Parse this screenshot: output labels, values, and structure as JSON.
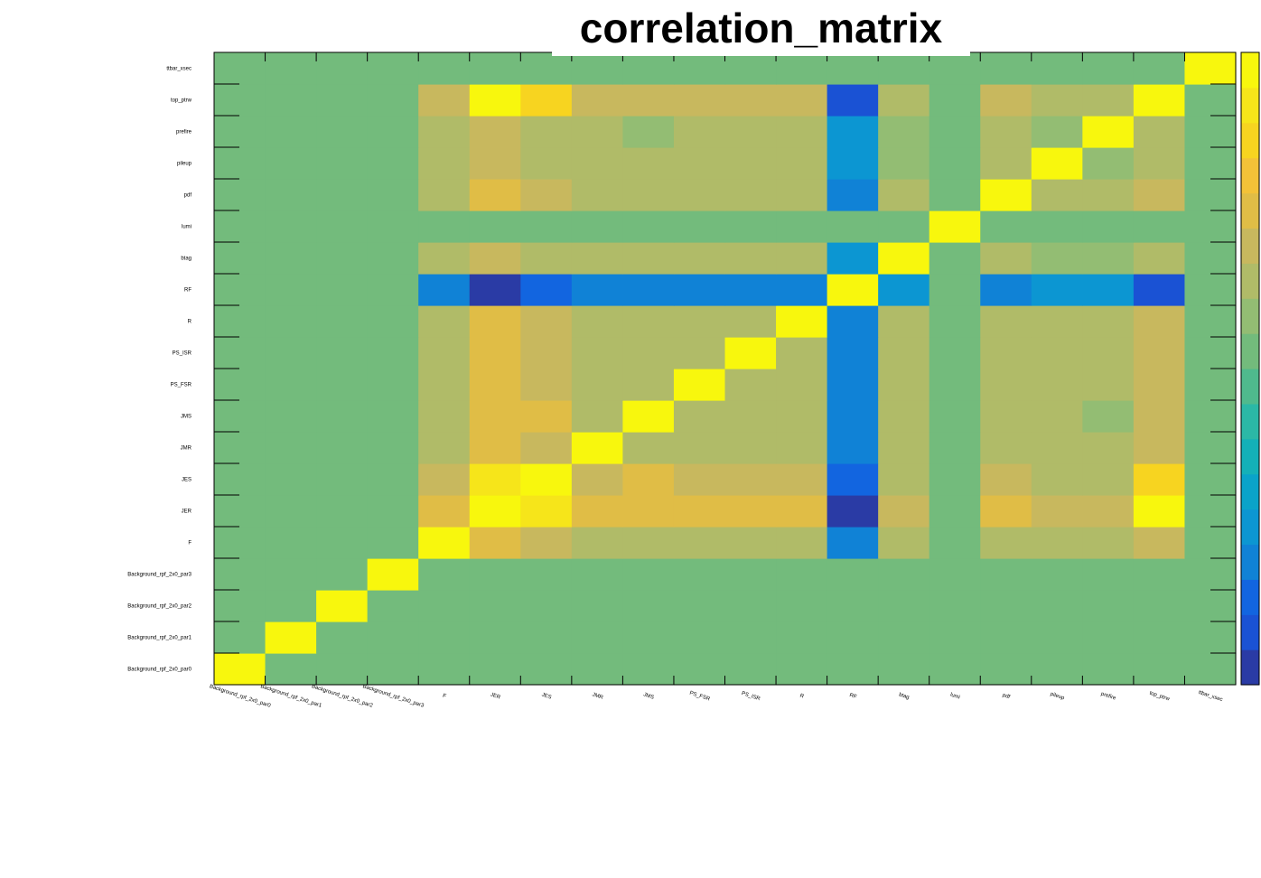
{
  "chart_data": {
    "type": "heatmap",
    "title": "correlation_matrix",
    "xlabel": "",
    "ylabel": "",
    "labels": [
      "Background_rpf_2x0_par0",
      "Background_rpf_2x0_par1",
      "Background_rpf_2x0_par2",
      "Background_rpf_2x0_par3",
      "F",
      "JER",
      "JES",
      "JMR",
      "JMS",
      "PS_FSR",
      "PS_ISR",
      "R",
      "RF",
      "btag",
      "lumi",
      "pdf",
      "pileup",
      "prefire",
      "top_ptrw",
      "ttbar_xsec"
    ],
    "zlim": [
      -1,
      1
    ],
    "values": [
      [
        1.0,
        0.1,
        0.1,
        0.1,
        0.0,
        0.1,
        0.0,
        0.0,
        0.0,
        0.0,
        0.0,
        0.0,
        0.0,
        0.0,
        0.1,
        0.0,
        0.0,
        0.0,
        0.1,
        0.1
      ],
      [
        0.1,
        1.0,
        0.1,
        0.1,
        0.0,
        0.1,
        0.1,
        0.0,
        0.0,
        0.0,
        0.0,
        0.0,
        0.0,
        0.0,
        0.1,
        0.0,
        0.0,
        0.0,
        0.1,
        0.1
      ],
      [
        0.1,
        0.1,
        1.0,
        0.1,
        0.0,
        0.0,
        0.0,
        0.0,
        0.0,
        0.0,
        0.0,
        0.0,
        0.0,
        0.0,
        0.0,
        0.0,
        0.0,
        0.0,
        0.0,
        0.1
      ],
      [
        0.1,
        0.1,
        0.1,
        1.0,
        0.0,
        0.1,
        0.0,
        0.0,
        0.0,
        0.0,
        0.0,
        0.0,
        0.0,
        0.0,
        0.1,
        0.0,
        0.0,
        0.0,
        0.1,
        0.1
      ],
      [
        0.0,
        0.0,
        0.0,
        0.0,
        1.0,
        0.5,
        0.4,
        0.3,
        0.3,
        0.3,
        0.3,
        0.3,
        -0.6,
        0.3,
        0.0,
        0.3,
        0.3,
        0.3,
        0.4,
        0.0
      ],
      [
        0.1,
        0.1,
        0.0,
        0.1,
        0.5,
        1.0,
        0.8,
        0.5,
        0.5,
        0.5,
        0.5,
        0.5,
        -0.9,
        0.4,
        0.0,
        0.5,
        0.4,
        0.4,
        0.9,
        0.0
      ],
      [
        0.0,
        0.1,
        0.0,
        0.0,
        0.4,
        0.8,
        1.0,
        0.4,
        0.5,
        0.4,
        0.4,
        0.4,
        -0.7,
        0.3,
        0.0,
        0.4,
        0.3,
        0.3,
        0.7,
        0.0
      ],
      [
        0.0,
        0.0,
        0.0,
        0.0,
        0.3,
        0.5,
        0.4,
        1.0,
        0.3,
        0.3,
        0.3,
        0.3,
        -0.6,
        0.3,
        0.0,
        0.3,
        0.3,
        0.3,
        0.4,
        0.0
      ],
      [
        0.0,
        0.0,
        0.0,
        0.0,
        0.3,
        0.5,
        0.5,
        0.3,
        1.0,
        0.3,
        0.3,
        0.3,
        -0.6,
        0.3,
        0.0,
        0.3,
        0.3,
        0.2,
        0.4,
        0.0
      ],
      [
        0.0,
        0.0,
        0.0,
        0.0,
        0.3,
        0.5,
        0.4,
        0.3,
        0.3,
        1.0,
        0.3,
        0.3,
        -0.6,
        0.3,
        0.0,
        0.3,
        0.3,
        0.3,
        0.4,
        0.0
      ],
      [
        0.0,
        0.0,
        0.0,
        0.0,
        0.3,
        0.5,
        0.4,
        0.3,
        0.3,
        0.3,
        1.0,
        0.3,
        -0.6,
        0.3,
        0.0,
        0.3,
        0.3,
        0.3,
        0.4,
        0.0
      ],
      [
        0.0,
        0.0,
        0.0,
        0.0,
        0.3,
        0.5,
        0.4,
        0.3,
        0.3,
        0.3,
        0.3,
        1.0,
        -0.6,
        0.3,
        0.0,
        0.3,
        0.3,
        0.3,
        0.4,
        0.0
      ],
      [
        0.0,
        0.0,
        0.0,
        0.0,
        -0.6,
        -0.9,
        -0.7,
        -0.6,
        -0.6,
        -0.6,
        -0.6,
        -0.6,
        1.0,
        -0.5,
        0.0,
        -0.6,
        -0.5,
        -0.5,
        -0.8,
        0.1
      ],
      [
        0.0,
        0.0,
        0.0,
        0.0,
        0.3,
        0.4,
        0.3,
        0.3,
        0.3,
        0.3,
        0.3,
        0.3,
        -0.5,
        1.0,
        0.0,
        0.3,
        0.2,
        0.2,
        0.3,
        0.0
      ],
      [
        0.1,
        0.1,
        0.0,
        0.1,
        0.0,
        0.0,
        0.0,
        0.0,
        0.0,
        0.0,
        0.0,
        0.0,
        0.0,
        0.0,
        1.0,
        0.0,
        0.0,
        0.0,
        0.0,
        0.1
      ],
      [
        0.0,
        0.0,
        0.0,
        0.0,
        0.3,
        0.5,
        0.4,
        0.3,
        0.3,
        0.3,
        0.3,
        0.3,
        -0.6,
        0.3,
        0.0,
        1.0,
        0.3,
        0.3,
        0.4,
        0.0
      ],
      [
        0.0,
        0.0,
        0.0,
        0.0,
        0.3,
        0.4,
        0.3,
        0.3,
        0.3,
        0.3,
        0.3,
        0.3,
        -0.5,
        0.2,
        0.0,
        0.3,
        1.0,
        0.2,
        0.3,
        0.0
      ],
      [
        0.0,
        0.0,
        0.0,
        0.0,
        0.3,
        0.4,
        0.3,
        0.3,
        0.2,
        0.3,
        0.3,
        0.3,
        -0.5,
        0.2,
        0.0,
        0.3,
        0.2,
        1.0,
        0.3,
        0.0
      ],
      [
        0.1,
        0.1,
        0.0,
        0.1,
        0.4,
        0.9,
        0.7,
        0.4,
        0.4,
        0.4,
        0.4,
        0.4,
        -0.8,
        0.3,
        0.0,
        0.4,
        0.3,
        0.3,
        1.0,
        0.0
      ],
      [
        0.1,
        0.1,
        0.1,
        0.1,
        0.0,
        0.0,
        0.0,
        0.0,
        0.0,
        0.0,
        0.0,
        0.0,
        0.1,
        0.0,
        0.1,
        0.0,
        0.0,
        0.0,
        0.0,
        1.0
      ]
    ],
    "palette": [
      "#2a3ba5",
      "#1a52d4",
      "#1265e0",
      "#1082d6",
      "#0c96d2",
      "#0aa3c9",
      "#14b0b8",
      "#2bb8a6",
      "#4fba8d",
      "#73bb7c",
      "#93bd73",
      "#b0bb68",
      "#c8b85e",
      "#e0bd46",
      "#f3c238",
      "#f7d420",
      "#f6e51a",
      "#f8f70d"
    ],
    "grid": false,
    "legend": "colorbar-right"
  }
}
